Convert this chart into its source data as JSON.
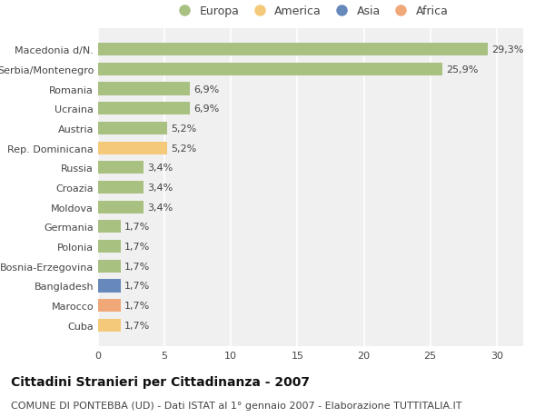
{
  "categories": [
    "Cuba",
    "Marocco",
    "Bangladesh",
    "Bosnia-Erzegovina",
    "Polonia",
    "Germania",
    "Moldova",
    "Croazia",
    "Russia",
    "Rep. Dominicana",
    "Austria",
    "Ucraina",
    "Romania",
    "Serbia/Montenegro",
    "Macedonia d/N."
  ],
  "values": [
    1.7,
    1.7,
    1.7,
    1.7,
    1.7,
    1.7,
    3.4,
    3.4,
    3.4,
    5.2,
    5.2,
    6.9,
    6.9,
    25.9,
    29.3
  ],
  "colors": [
    "#f5c97a",
    "#f0a878",
    "#6688bb",
    "#a8c080",
    "#a8c080",
    "#a8c080",
    "#a8c080",
    "#a8c080",
    "#a8c080",
    "#f5c97a",
    "#a8c080",
    "#a8c080",
    "#a8c080",
    "#a8c080",
    "#a8c080"
  ],
  "labels": [
    "1,7%",
    "1,7%",
    "1,7%",
    "1,7%",
    "1,7%",
    "1,7%",
    "3,4%",
    "3,4%",
    "3,4%",
    "5,2%",
    "5,2%",
    "6,9%",
    "6,9%",
    "25,9%",
    "29,3%"
  ],
  "title": "Cittadini Stranieri per Cittadinanza - 2007",
  "subtitle": "COMUNE DI PONTEBBA (UD) - Dati ISTAT al 1° gennaio 2007 - Elaborazione TUTTITALIA.IT",
  "xlim": [
    0,
    32
  ],
  "xticks": [
    0,
    5,
    10,
    15,
    20,
    25,
    30
  ],
  "legend_labels": [
    "Europa",
    "America",
    "Asia",
    "Africa"
  ],
  "legend_colors": [
    "#a8c080",
    "#f5c97a",
    "#6688bb",
    "#f0a878"
  ],
  "bg_color": "#ffffff",
  "plot_bg_color": "#f0f0f0",
  "grid_color": "#ffffff",
  "bar_height": 0.65,
  "title_fontsize": 10,
  "subtitle_fontsize": 8,
  "tick_fontsize": 8,
  "label_fontsize": 8
}
